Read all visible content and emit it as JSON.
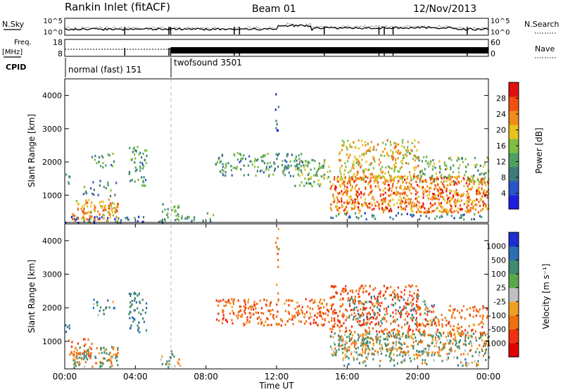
{
  "header": {
    "title": "Rankin Inlet (fitACF)",
    "beam": "Beam 01",
    "date": "12/Nov/2013"
  },
  "top_panels": {
    "nsky_label": "N.Sky",
    "nsky_ticks": [
      "10^5",
      "10^0"
    ],
    "nsearch_label": "N.Search",
    "nsearch_ticks": [
      "10^5",
      "10^0"
    ],
    "freq_label": "Freq.",
    "freq_unit": "[MHz]",
    "freq_ticks": [
      "18",
      "8"
    ],
    "nave_label": "Nave",
    "nave_ticks": [
      "60",
      "0"
    ],
    "cpid_label": "CPID",
    "cpid_modes": [
      {
        "name": "normal (fast) 151",
        "start_hour": 0.0,
        "end_hour": 6.0
      },
      {
        "name": "twofsound 3501",
        "start_hour": 6.0,
        "end_hour": 24.0
      }
    ]
  },
  "x_axis": {
    "label": "Time UT",
    "ticks": [
      "00:00",
      "04:00",
      "08:00",
      "12:00",
      "16:00",
      "20:00",
      "00:00"
    ],
    "range_hours": [
      0,
      24
    ]
  },
  "power_panel": {
    "ylabel": "Slant Range [km]",
    "yticks": [
      "4000",
      "3000",
      "2000",
      "1000"
    ],
    "colorbar_label": "Power [dB]",
    "colorbar_ticks": [
      "28",
      "24",
      "20",
      "16",
      "12",
      "8",
      "4"
    ],
    "colors": [
      "#1f1fe0",
      "#2856c8",
      "#3e7a7a",
      "#4f9f63",
      "#7dbf3f",
      "#e6c21f",
      "#f08a1a",
      "#f05010",
      "#e01010"
    ]
  },
  "velocity_panel": {
    "ylabel": "Slant Range [km]",
    "yticks": [
      "4000",
      "3000",
      "2000",
      "1000"
    ],
    "colorbar_label": "Velocity [m s⁻¹]",
    "colorbar_ticks": [
      "1000",
      "500",
      "100",
      "25",
      "-25",
      "-100",
      "-500",
      "-1000"
    ],
    "colors": [
      "#1a2fd0",
      "#2a6fb0",
      "#3f8a70",
      "#5aa84a",
      "#c0c0c0",
      "#f0a020",
      "#f07010",
      "#f03010",
      "#e00000"
    ]
  },
  "chart_data": [
    {
      "type": "heatmap",
      "title": "Rankin Inlet (fitACF)",
      "xlabel": "Time UT",
      "ylabel": "Slant Range [km]",
      "xlim": [
        0,
        24
      ],
      "ylim": [
        180,
        4500
      ],
      "colorbar": "Power [dB]",
      "color_range": [
        0,
        32
      ],
      "blobs": [
        {
          "t0": 0.0,
          "t1": 0.25,
          "r0": 1300,
          "r1": 1700,
          "v": 10,
          "d": 0.7
        },
        {
          "t0": 0.4,
          "t1": 3.0,
          "r0": 250,
          "r1": 900,
          "v": 22,
          "d": 0.8
        },
        {
          "t0": 1.0,
          "t1": 3.0,
          "r0": 1000,
          "r1": 1500,
          "v": 10,
          "d": 0.25
        },
        {
          "t0": 1.5,
          "t1": 2.8,
          "r0": 1800,
          "r1": 2300,
          "v": 12,
          "d": 0.35
        },
        {
          "t0": 3.6,
          "t1": 4.6,
          "r0": 1300,
          "r1": 2500,
          "v": 12,
          "d": 0.5
        },
        {
          "t0": 5.4,
          "t1": 6.5,
          "r0": 250,
          "r1": 800,
          "v": 12,
          "d": 0.5
        },
        {
          "t0": 0.0,
          "t1": 6.0,
          "r0": 200,
          "r1": 400,
          "v": 8,
          "d": 0.35
        },
        {
          "t0": 6.5,
          "t1": 8.5,
          "r0": 200,
          "r1": 500,
          "v": 10,
          "d": 0.3
        },
        {
          "t0": 8.5,
          "t1": 13.5,
          "r0": 1600,
          "r1": 2300,
          "v": 12,
          "d": 0.45
        },
        {
          "t0": 11.9,
          "t1": 12.1,
          "r0": 2200,
          "r1": 4400,
          "v": 8,
          "d": 0.3
        },
        {
          "t0": 13.0,
          "t1": 15.0,
          "r0": 1300,
          "r1": 2100,
          "v": 14,
          "d": 0.6
        },
        {
          "t0": 15.0,
          "t1": 24.0,
          "r0": 500,
          "r1": 1600,
          "v": 24,
          "d": 0.9
        },
        {
          "t0": 15.5,
          "t1": 20.0,
          "r0": 1500,
          "r1": 2700,
          "v": 20,
          "d": 0.55
        },
        {
          "t0": 20.0,
          "t1": 24.0,
          "r0": 1400,
          "r1": 2200,
          "v": 14,
          "d": 0.4
        },
        {
          "t0": 15.0,
          "t1": 24.0,
          "r0": 300,
          "r1": 500,
          "v": 8,
          "d": 0.35
        }
      ]
    },
    {
      "type": "heatmap",
      "title": "Beam 01",
      "xlabel": "Time UT",
      "ylabel": "Slant Range [km]",
      "xlim": [
        0,
        24
      ],
      "ylim": [
        180,
        4500
      ],
      "colorbar": "Velocity [m s⁻¹]",
      "color_range": [
        -1000,
        1000
      ],
      "blobs": [
        {
          "t0": 0.0,
          "t1": 0.25,
          "r0": 1300,
          "r1": 1700,
          "v": 300,
          "d": 0.6
        },
        {
          "t0": 0.4,
          "t1": 3.0,
          "r0": 250,
          "r1": 900,
          "v": 0,
          "d": 0.7
        },
        {
          "t0": 0.2,
          "t1": 1.5,
          "r0": 500,
          "r1": 1100,
          "v": -300,
          "d": 0.4
        },
        {
          "t0": 1.5,
          "t1": 2.8,
          "r0": 1800,
          "r1": 2300,
          "v": 200,
          "d": 0.35
        },
        {
          "t0": 3.6,
          "t1": 4.6,
          "r0": 1300,
          "r1": 2500,
          "v": 300,
          "d": 0.5
        },
        {
          "t0": 5.4,
          "t1": 6.5,
          "r0": 250,
          "r1": 800,
          "v": 100,
          "d": 0.4
        },
        {
          "t0": 8.5,
          "t1": 15.0,
          "r0": 1500,
          "r1": 2300,
          "v": -300,
          "d": 0.55
        },
        {
          "t0": 11.9,
          "t1": 12.1,
          "r0": 2200,
          "r1": 4400,
          "v": -200,
          "d": 0.3
        },
        {
          "t0": 15.0,
          "t1": 24.0,
          "r0": 600,
          "r1": 1300,
          "v": 0,
          "d": 0.85
        },
        {
          "t0": 15.0,
          "t1": 20.0,
          "r0": 1300,
          "r1": 2700,
          "v": -400,
          "d": 0.55
        },
        {
          "t0": 16.0,
          "t1": 21.0,
          "r0": 1500,
          "r1": 2400,
          "v": 200,
          "d": 0.25
        },
        {
          "t0": 20.0,
          "t1": 24.0,
          "r0": 1200,
          "r1": 2100,
          "v": -300,
          "d": 0.45
        },
        {
          "t0": 15.0,
          "t1": 24.0,
          "r0": 300,
          "r1": 600,
          "v": 100,
          "d": 0.3
        }
      ]
    }
  ]
}
